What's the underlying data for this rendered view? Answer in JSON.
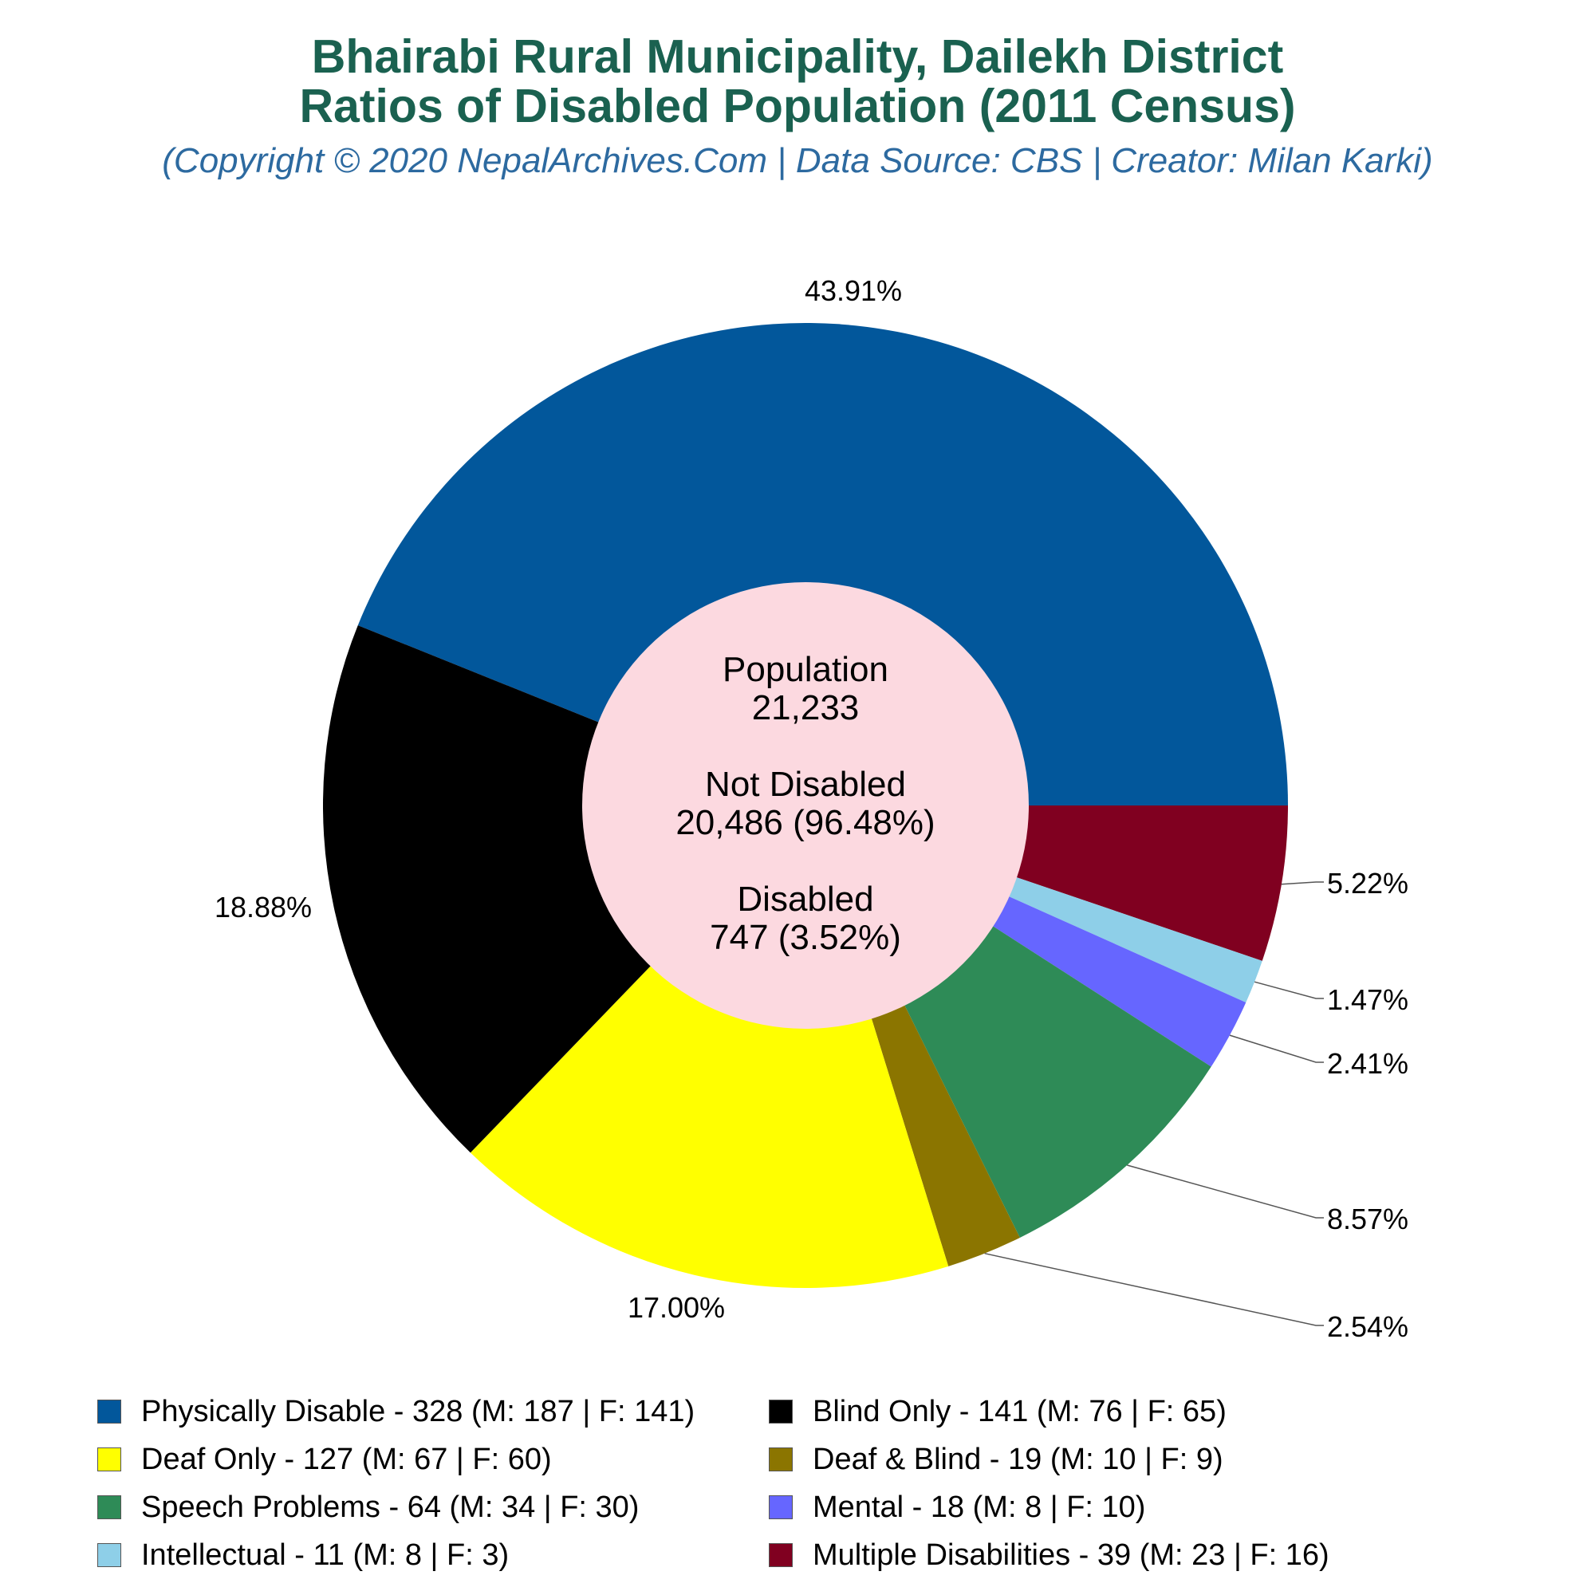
{
  "header": {
    "title_line1": "Bhairabi Rural Municipality, Dailekh District",
    "title_line2": "Ratios of Disabled Population (2011 Census)",
    "subtitle": "(Copyright © 2020 NepalArchives.Com | Data Source: CBS | Creator: Milan Karki)"
  },
  "center": {
    "population_label": "Population",
    "population_value": "21,233",
    "not_disabled_label": "Not Disabled",
    "not_disabled_value": "20,486 (96.48%)",
    "disabled_label": "Disabled",
    "disabled_value": "747 (3.52%)"
  },
  "chart_data": {
    "type": "pie",
    "title": "Bhairabi Rural Municipality, Dailekh District Ratios of Disabled Population (2011 Census)",
    "categories": [
      "Physically Disable",
      "Multiple Disabilities",
      "Intellectual",
      "Mental",
      "Speech Problems",
      "Deaf & Blind",
      "Deaf Only",
      "Blind Only"
    ],
    "values": [
      328,
      39,
      11,
      18,
      64,
      19,
      127,
      141
    ],
    "percent_labels": [
      "43.91%",
      "5.22%",
      "1.47%",
      "2.41%",
      "8.57%",
      "2.54%",
      "17.00%",
      "18.88%"
    ],
    "colors": [
      "#02579b",
      "#800020",
      "#8ecfe8",
      "#6666ff",
      "#2e8b57",
      "#8b7500",
      "#ffff00",
      "#000000"
    ],
    "center_color": "#fcd9e0",
    "legend": [
      {
        "label": "Physically Disable - 328 (M: 187 | F: 141)",
        "color": "#02579b"
      },
      {
        "label": "Blind Only - 141 (M: 76 | F: 65)",
        "color": "#000000"
      },
      {
        "label": "Deaf Only - 127 (M: 67 | F: 60)",
        "color": "#ffff00"
      },
      {
        "label": "Deaf & Blind - 19 (M: 10 | F: 9)",
        "color": "#8b7500"
      },
      {
        "label": "Speech Problems - 64 (M: 34 | F: 30)",
        "color": "#2e8b57"
      },
      {
        "label": "Mental - 18 (M: 8 | F: 10)",
        "color": "#6666ff"
      },
      {
        "label": "Intellectual - 11 (M: 8 | F: 3)",
        "color": "#8ecfe8"
      },
      {
        "label": "Multiple Disabilities - 39 (M: 23 | F: 16)",
        "color": "#800020"
      }
    ],
    "legend_placement": "bottom"
  }
}
